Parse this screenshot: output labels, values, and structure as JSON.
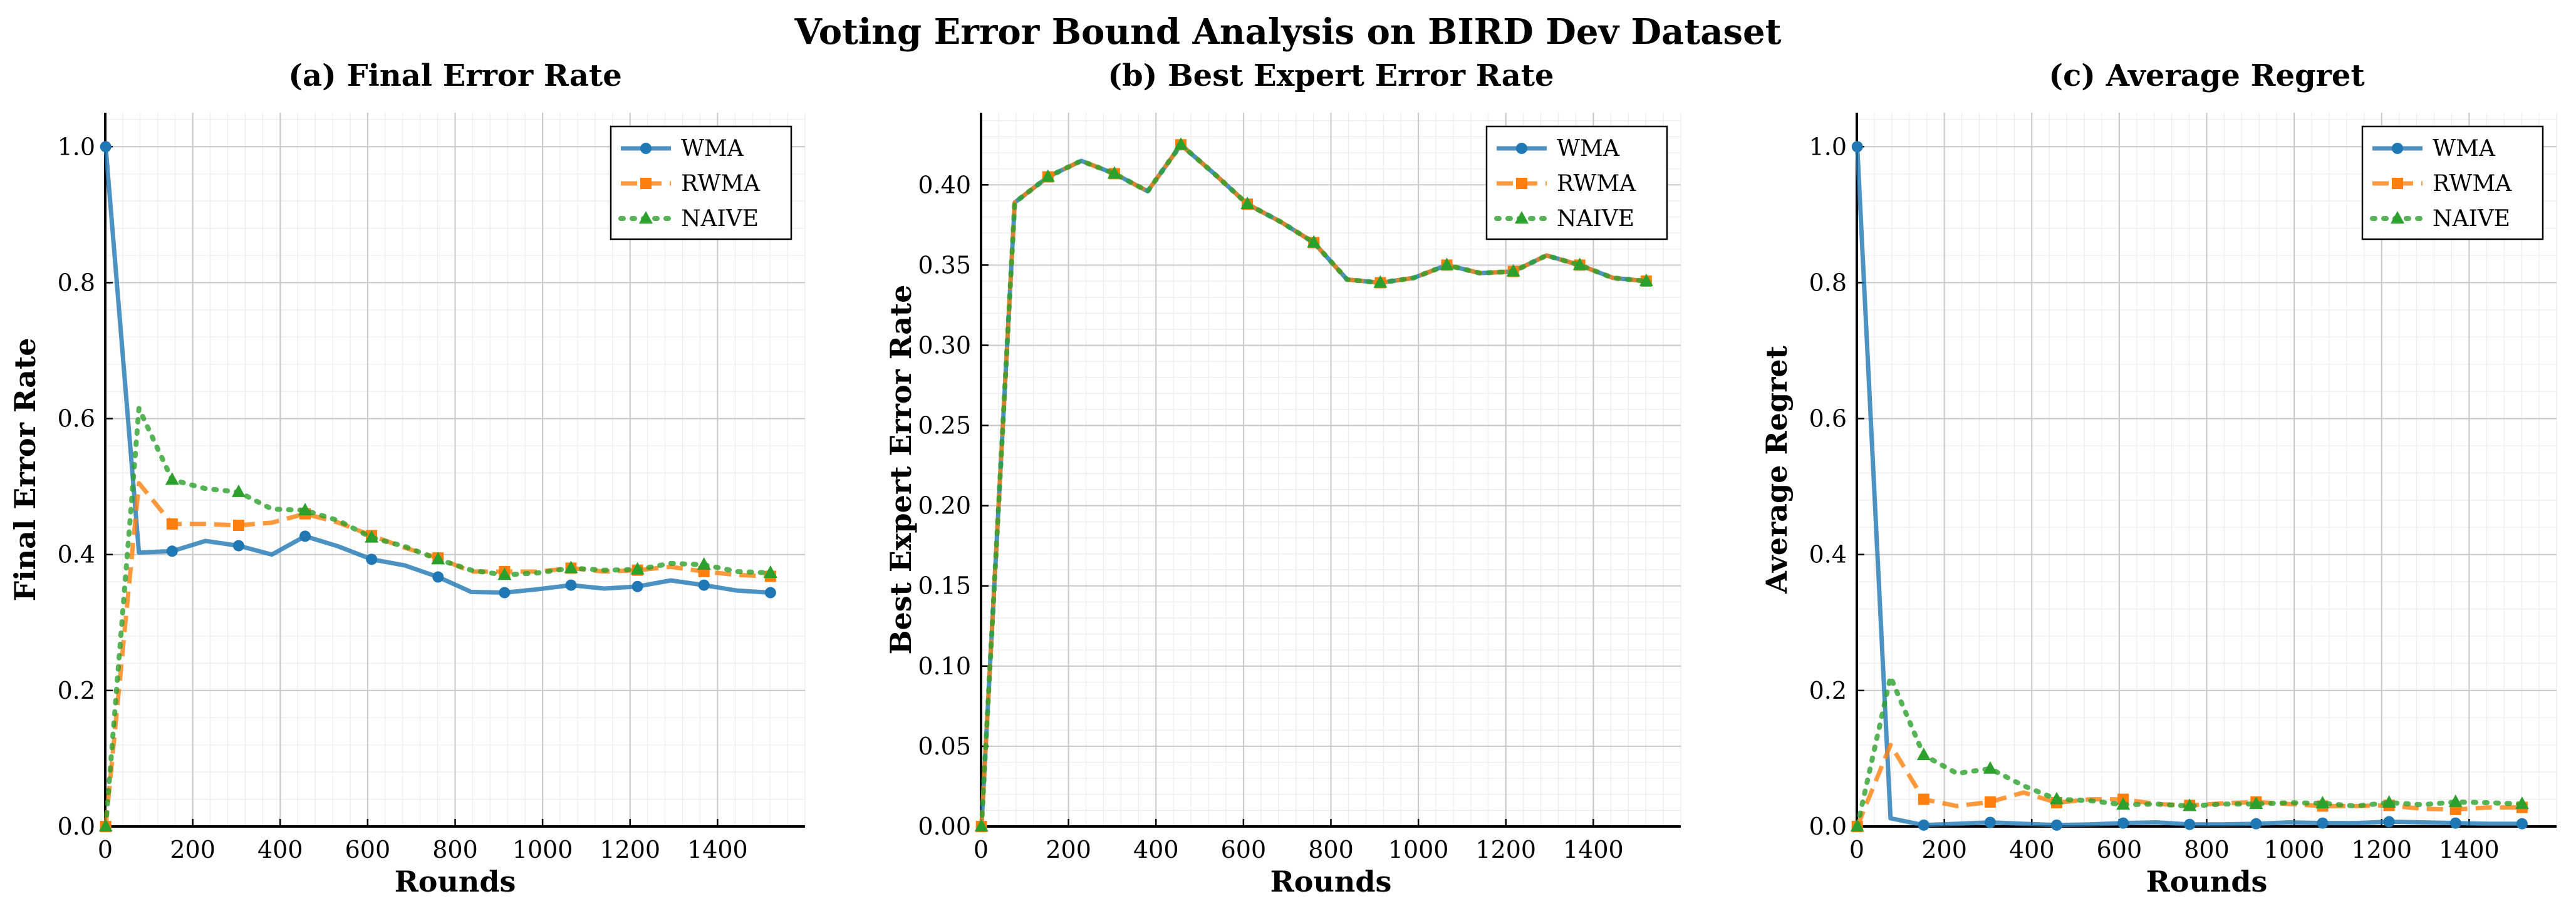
{
  "figure_title": "Voting Error Bound Analysis on BIRD Dev Dataset",
  "colors": {
    "WMA": "#1f77b4",
    "RWMA": "#ff7f0e",
    "NAIVE": "#2ca02c"
  },
  "chart_data": [
    {
      "type": "line",
      "title": "(a) Final Error Rate",
      "xlabel": "Rounds",
      "ylabel": "Final Error Rate",
      "xlim": [
        0,
        1600
      ],
      "ylim": [
        0,
        1.05
      ],
      "xticks": [
        "0",
        "200",
        "400",
        "600",
        "800",
        "1000",
        "1200",
        "1400"
      ],
      "yticks": [
        "0.0",
        "0.2",
        "0.4",
        "0.6",
        "0.8",
        "1.0"
      ],
      "grid": true,
      "legend_position": "top-right",
      "x": [
        1,
        77,
        153,
        229,
        305,
        381,
        457,
        533,
        609,
        685,
        761,
        837,
        913,
        989,
        1065,
        1141,
        1217,
        1293,
        1369,
        1445,
        1521
      ],
      "series": [
        {
          "name": "WMA",
          "marker": "circle",
          "dash": "solid",
          "values": [
            1.0,
            0.403,
            0.405,
            0.42,
            0.413,
            0.4,
            0.427,
            0.412,
            0.393,
            0.384,
            0.367,
            0.345,
            0.344,
            0.349,
            0.355,
            0.35,
            0.353,
            0.362,
            0.355,
            0.347,
            0.344
          ]
        },
        {
          "name": "RWMA",
          "marker": "square",
          "dash": "dashed",
          "values": [
            0.0,
            0.505,
            0.445,
            0.445,
            0.443,
            0.447,
            0.46,
            0.447,
            0.428,
            0.41,
            0.395,
            0.375,
            0.375,
            0.375,
            0.38,
            0.375,
            0.377,
            0.382,
            0.375,
            0.37,
            0.368
          ]
        },
        {
          "name": "NAIVE",
          "marker": "triangle",
          "dash": "dotted",
          "values": [
            0.0,
            0.615,
            0.51,
            0.497,
            0.492,
            0.467,
            0.465,
            0.45,
            0.425,
            0.412,
            0.393,
            0.377,
            0.37,
            0.373,
            0.38,
            0.377,
            0.378,
            0.387,
            0.385,
            0.375,
            0.373
          ]
        }
      ]
    },
    {
      "type": "line",
      "title": "(b) Best Expert Error Rate",
      "xlabel": "Rounds",
      "ylabel": "Best Expert Error Rate",
      "xlim": [
        0,
        1600
      ],
      "ylim": [
        0,
        0.445
      ],
      "xticks": [
        "0",
        "200",
        "400",
        "600",
        "800",
        "1000",
        "1200",
        "1400"
      ],
      "yticks": [
        "0.00",
        "0.05",
        "0.10",
        "0.15",
        "0.20",
        "0.25",
        "0.30",
        "0.35",
        "0.40"
      ],
      "grid": true,
      "legend_position": "top-right",
      "x": [
        1,
        77,
        153,
        229,
        305,
        381,
        457,
        533,
        609,
        685,
        761,
        837,
        913,
        989,
        1065,
        1141,
        1217,
        1293,
        1369,
        1445,
        1521
      ],
      "series": [
        {
          "name": "WMA",
          "marker": "circle",
          "dash": "solid",
          "values": [
            0.0,
            0.389,
            0.405,
            0.415,
            0.407,
            0.396,
            0.425,
            0.407,
            0.388,
            0.377,
            0.364,
            0.341,
            0.339,
            0.342,
            0.35,
            0.345,
            0.346,
            0.356,
            0.35,
            0.342,
            0.34
          ]
        },
        {
          "name": "RWMA",
          "marker": "square",
          "dash": "dashed",
          "values": [
            0.0,
            0.389,
            0.405,
            0.415,
            0.407,
            0.396,
            0.425,
            0.407,
            0.388,
            0.377,
            0.364,
            0.341,
            0.339,
            0.342,
            0.35,
            0.345,
            0.346,
            0.356,
            0.35,
            0.342,
            0.34
          ]
        },
        {
          "name": "NAIVE",
          "marker": "triangle",
          "dash": "dotted",
          "values": [
            0.0,
            0.389,
            0.405,
            0.415,
            0.407,
            0.396,
            0.425,
            0.407,
            0.388,
            0.377,
            0.364,
            0.341,
            0.339,
            0.342,
            0.35,
            0.345,
            0.346,
            0.356,
            0.35,
            0.342,
            0.34
          ]
        }
      ]
    },
    {
      "type": "line",
      "title": "(c) Average Regret",
      "xlabel": "Rounds",
      "ylabel": "Average Regret",
      "xlim": [
        0,
        1600
      ],
      "ylim": [
        0,
        1.05
      ],
      "xticks": [
        "0",
        "200",
        "400",
        "600",
        "800",
        "1000",
        "1200",
        "1400"
      ],
      "yticks": [
        "0.0",
        "0.2",
        "0.4",
        "0.6",
        "0.8",
        "1.0"
      ],
      "grid": true,
      "legend_position": "top-right",
      "x": [
        1,
        77,
        153,
        229,
        305,
        381,
        457,
        533,
        609,
        685,
        761,
        837,
        913,
        989,
        1065,
        1141,
        1217,
        1293,
        1369,
        1445,
        1521
      ],
      "series": [
        {
          "name": "WMA",
          "marker": "circle",
          "dash": "solid",
          "values": [
            1.0,
            0.012,
            0.002,
            0.004,
            0.006,
            0.004,
            0.002,
            0.003,
            0.005,
            0.006,
            0.003,
            0.003,
            0.004,
            0.006,
            0.005,
            0.005,
            0.007,
            0.006,
            0.005,
            0.004,
            0.004
          ]
        },
        {
          "name": "RWMA",
          "marker": "square",
          "dash": "dashed",
          "values": [
            0.0,
            0.12,
            0.04,
            0.03,
            0.036,
            0.05,
            0.035,
            0.04,
            0.04,
            0.033,
            0.031,
            0.034,
            0.036,
            0.033,
            0.03,
            0.03,
            0.031,
            0.026,
            0.025,
            0.028,
            0.028
          ]
        },
        {
          "name": "NAIVE",
          "marker": "triangle",
          "dash": "dotted",
          "values": [
            0.0,
            0.22,
            0.105,
            0.078,
            0.085,
            0.06,
            0.04,
            0.038,
            0.032,
            0.033,
            0.03,
            0.033,
            0.033,
            0.035,
            0.034,
            0.03,
            0.035,
            0.032,
            0.036,
            0.035,
            0.033
          ]
        }
      ]
    }
  ]
}
